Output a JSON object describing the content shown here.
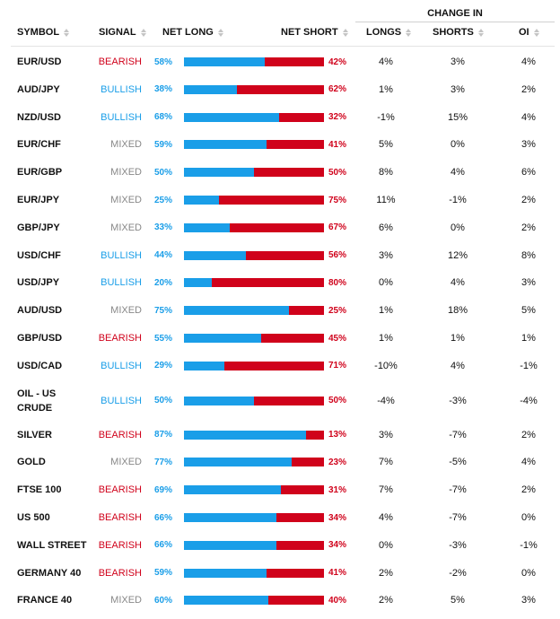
{
  "header": {
    "change_in": "CHANGE IN",
    "symbol": "SYMBOL",
    "signal": "SIGNAL",
    "net_long": "NET LONG",
    "net_short": "NET SHORT",
    "longs": "LONGS",
    "shorts": "SHORTS",
    "oi": "OI"
  },
  "colors": {
    "long": "#1a9ee8",
    "short": "#d0021b",
    "bearish": "#d0021b",
    "bullish": "#1a9ee8",
    "mixed": "#888888"
  },
  "rows": [
    {
      "symbol": "EUR/USD",
      "signal": "BEARISH",
      "long": "58%",
      "short": "42%",
      "longs": "4%",
      "shorts": "3%",
      "oi": "4%"
    },
    {
      "symbol": "AUD/JPY",
      "signal": "BULLISH",
      "long": "38%",
      "short": "62%",
      "longs": "1%",
      "shorts": "3%",
      "oi": "2%"
    },
    {
      "symbol": "NZD/USD",
      "signal": "BULLISH",
      "long": "68%",
      "short": "32%",
      "longs": "-1%",
      "shorts": "15%",
      "oi": "4%"
    },
    {
      "symbol": "EUR/CHF",
      "signal": "MIXED",
      "long": "59%",
      "short": "41%",
      "longs": "5%",
      "shorts": "0%",
      "oi": "3%"
    },
    {
      "symbol": "EUR/GBP",
      "signal": "MIXED",
      "long": "50%",
      "short": "50%",
      "longs": "8%",
      "shorts": "4%",
      "oi": "6%"
    },
    {
      "symbol": "EUR/JPY",
      "signal": "MIXED",
      "long": "25%",
      "short": "75%",
      "longs": "11%",
      "shorts": "-1%",
      "oi": "2%"
    },
    {
      "symbol": "GBP/JPY",
      "signal": "MIXED",
      "long": "33%",
      "short": "67%",
      "longs": "6%",
      "shorts": "0%",
      "oi": "2%"
    },
    {
      "symbol": "USD/CHF",
      "signal": "BULLISH",
      "long": "44%",
      "short": "56%",
      "longs": "3%",
      "shorts": "12%",
      "oi": "8%"
    },
    {
      "symbol": "USD/JPY",
      "signal": "BULLISH",
      "long": "20%",
      "short": "80%",
      "longs": "0%",
      "shorts": "4%",
      "oi": "3%"
    },
    {
      "symbol": "AUD/USD",
      "signal": "MIXED",
      "long": "75%",
      "short": "25%",
      "longs": "1%",
      "shorts": "18%",
      "oi": "5%"
    },
    {
      "symbol": "GBP/USD",
      "signal": "BEARISH",
      "long": "55%",
      "short": "45%",
      "longs": "1%",
      "shorts": "1%",
      "oi": "1%"
    },
    {
      "symbol": "USD/CAD",
      "signal": "BULLISH",
      "long": "29%",
      "short": "71%",
      "longs": "-10%",
      "shorts": "4%",
      "oi": "-1%"
    },
    {
      "symbol": "OIL - US CRUDE",
      "signal": "BULLISH",
      "long": "50%",
      "short": "50%",
      "longs": "-4%",
      "shorts": "-3%",
      "oi": "-4%"
    },
    {
      "symbol": "SILVER",
      "signal": "BEARISH",
      "long": "87%",
      "short": "13%",
      "longs": "3%",
      "shorts": "-7%",
      "oi": "2%"
    },
    {
      "symbol": "GOLD",
      "signal": "MIXED",
      "long": "77%",
      "short": "23%",
      "longs": "7%",
      "shorts": "-5%",
      "oi": "4%"
    },
    {
      "symbol": "FTSE 100",
      "signal": "BEARISH",
      "long": "69%",
      "short": "31%",
      "longs": "7%",
      "shorts": "-7%",
      "oi": "2%"
    },
    {
      "symbol": "US 500",
      "signal": "BEARISH",
      "long": "66%",
      "short": "34%",
      "longs": "4%",
      "shorts": "-7%",
      "oi": "0%"
    },
    {
      "symbol": "WALL STREET",
      "signal": "BEARISH",
      "long": "66%",
      "short": "34%",
      "longs": "0%",
      "shorts": "-3%",
      "oi": "-1%"
    },
    {
      "symbol": "GERMANY 40",
      "signal": "BEARISH",
      "long": "59%",
      "short": "41%",
      "longs": "2%",
      "shorts": "-2%",
      "oi": "0%"
    },
    {
      "symbol": "FRANCE 40",
      "signal": "MIXED",
      "long": "60%",
      "short": "40%",
      "longs": "2%",
      "shorts": "5%",
      "oi": "3%"
    }
  ]
}
